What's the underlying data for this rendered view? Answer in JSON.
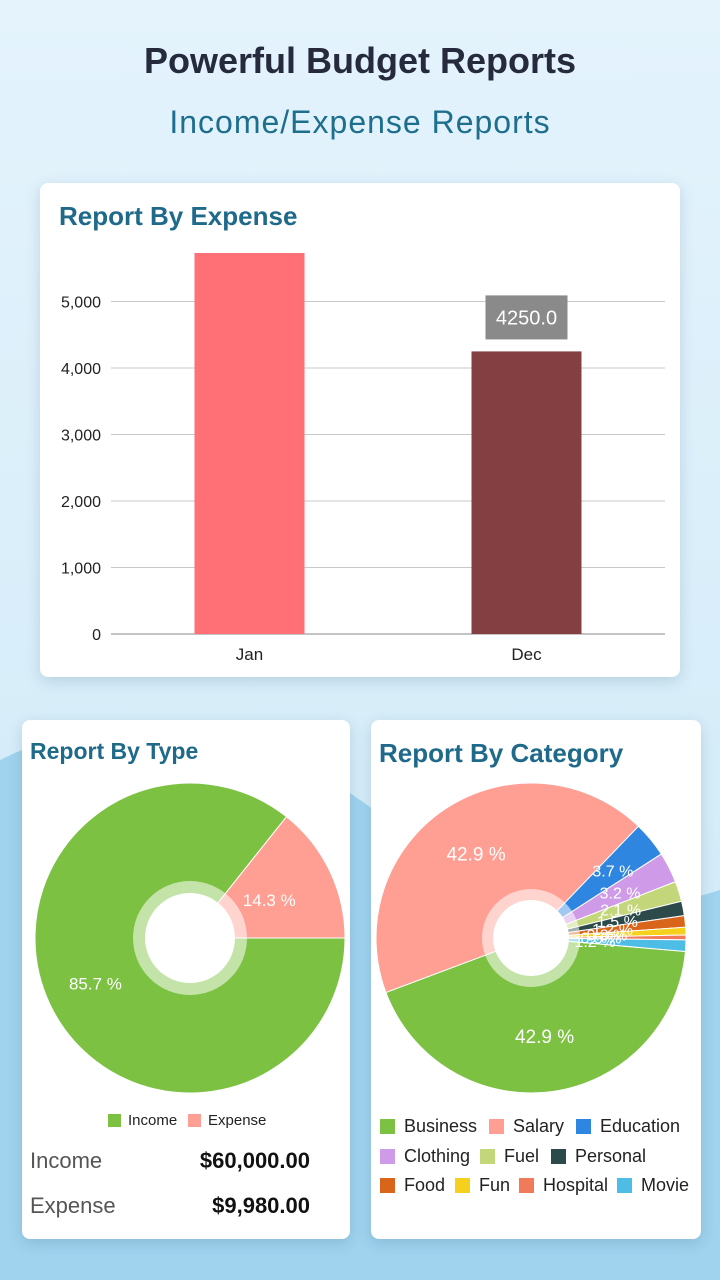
{
  "page": {
    "headline": "Powerful Budget Reports",
    "subhead": "Income/Expense Reports"
  },
  "expense_report": {
    "title": "Report By Expense",
    "chart_data": {
      "type": "bar",
      "title": "Report By Expense",
      "categories": [
        "Jan",
        "Dec"
      ],
      "values": [
        5730,
        4250
      ],
      "colors": [
        "#ff6f75",
        "#843f43"
      ],
      "highlight_label": "4250.0",
      "yticks": [
        0,
        1000,
        2000,
        3000,
        4000,
        5000
      ],
      "ytick_labels": [
        "0",
        "1,000",
        "2,000",
        "3,000",
        "4,000",
        "5,000"
      ],
      "ylim": [
        0,
        5700
      ],
      "grid": true
    }
  },
  "type_report": {
    "title": "Report By Type",
    "chart_data": {
      "type": "pie",
      "labels": [
        "Income",
        "Expense"
      ],
      "values": [
        85.7,
        14.3
      ],
      "value_labels": [
        "85.7 %",
        "14.3 %"
      ],
      "colors": [
        "#7cc142",
        "#ff9e92"
      ],
      "legend": "bottom"
    },
    "summary": [
      {
        "label": "Income",
        "value": "$60,000.00"
      },
      {
        "label": "Expense",
        "value": "$9,980.00"
      }
    ]
  },
  "category_report": {
    "title": "Report By Category",
    "chart_data": {
      "type": "pie",
      "labels": [
        "Business",
        "Salary",
        "Education",
        "Clothing",
        "Fuel",
        "Personal",
        "Food",
        "Fun",
        "Hospital",
        "Movie"
      ],
      "values": [
        42.9,
        42.9,
        3.7,
        3.2,
        2.1,
        1.5,
        1.2,
        0.8,
        0.5,
        1.2
      ],
      "value_labels": [
        "42.9 %",
        "42.9 %",
        "3.7 %",
        "3.2 %",
        "2.1 %",
        "1.5 %",
        "1.2 %",
        "0.8 %",
        "0.5 %",
        "1.2 %"
      ],
      "colors": [
        "#7cc142",
        "#ff9e92",
        "#2f86e0",
        "#cf9be8",
        "#c3d77a",
        "#2d4a4b",
        "#d9651a",
        "#f5d01c",
        "#f07a5a",
        "#4dbde6"
      ],
      "legend": "bottom"
    }
  }
}
